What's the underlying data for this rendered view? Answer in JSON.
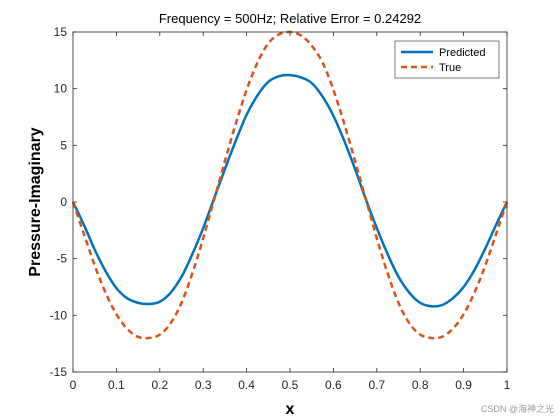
{
  "chart_data": {
    "type": "line",
    "title": "Frequency = 500Hz; Relative Error = 0.24292",
    "xlabel": "x",
    "ylabel": "Pressure-Imaginary",
    "xlim": [
      0,
      1
    ],
    "ylim": [
      -15,
      15
    ],
    "xticks": [
      0,
      0.1,
      0.2,
      0.3,
      0.4,
      0.5,
      0.6,
      0.7,
      0.8,
      0.9,
      1
    ],
    "xtick_labels": [
      "0",
      "0.1",
      "0.2",
      "0.3",
      "0.4",
      "0.5",
      "0.6",
      "0.7",
      "0.8",
      "0.9",
      "1"
    ],
    "yticks": [
      -15,
      -10,
      -5,
      0,
      5,
      10,
      15
    ],
    "ytick_labels": [
      "-15",
      "-10",
      "-5",
      "0",
      "5",
      "10",
      "15"
    ],
    "grid": false,
    "legend_position": "top-right",
    "x": [
      0,
      0.025,
      0.05,
      0.075,
      0.1,
      0.125,
      0.15,
      0.175,
      0.2,
      0.225,
      0.25,
      0.275,
      0.3,
      0.325,
      0.35,
      0.375,
      0.4,
      0.425,
      0.45,
      0.475,
      0.5,
      0.525,
      0.55,
      0.575,
      0.6,
      0.625,
      0.65,
      0.675,
      0.7,
      0.725,
      0.75,
      0.775,
      0.8,
      0.825,
      0.85,
      0.875,
      0.9,
      0.925,
      0.95,
      0.975,
      1
    ],
    "series": [
      {
        "name": "Predicted",
        "color": "#0072BD",
        "style": "solid",
        "values": [
          0,
          -2.0,
          -4.2,
          -6.1,
          -7.6,
          -8.5,
          -8.9,
          -9.0,
          -8.8,
          -8.0,
          -6.6,
          -4.6,
          -2.3,
          0.3,
          2.9,
          5.4,
          7.7,
          9.4,
          10.6,
          11.1,
          11.2,
          11.0,
          10.5,
          9.3,
          7.6,
          5.4,
          2.9,
          0.2,
          -2.3,
          -4.6,
          -6.6,
          -8.0,
          -8.9,
          -9.2,
          -9.1,
          -8.5,
          -7.5,
          -6.0,
          -4.1,
          -2.0,
          0
        ]
      },
      {
        "name": "True",
        "color": "#D95319",
        "style": "dashed",
        "values": [
          0,
          -2.8,
          -5.6,
          -8.0,
          -9.9,
          -11.2,
          -11.9,
          -12.0,
          -11.7,
          -10.7,
          -8.9,
          -6.3,
          -3.2,
          0.2,
          3.6,
          6.9,
          9.9,
          12.3,
          14.0,
          14.8,
          15.0,
          14.7,
          13.8,
          12.3,
          9.9,
          6.9,
          3.6,
          0.2,
          -3.2,
          -6.3,
          -8.9,
          -10.7,
          -11.7,
          -12.0,
          -11.9,
          -11.2,
          -9.9,
          -8.0,
          -5.6,
          -2.8,
          0
        ]
      }
    ]
  },
  "watermark": "CSDN @海神之光"
}
